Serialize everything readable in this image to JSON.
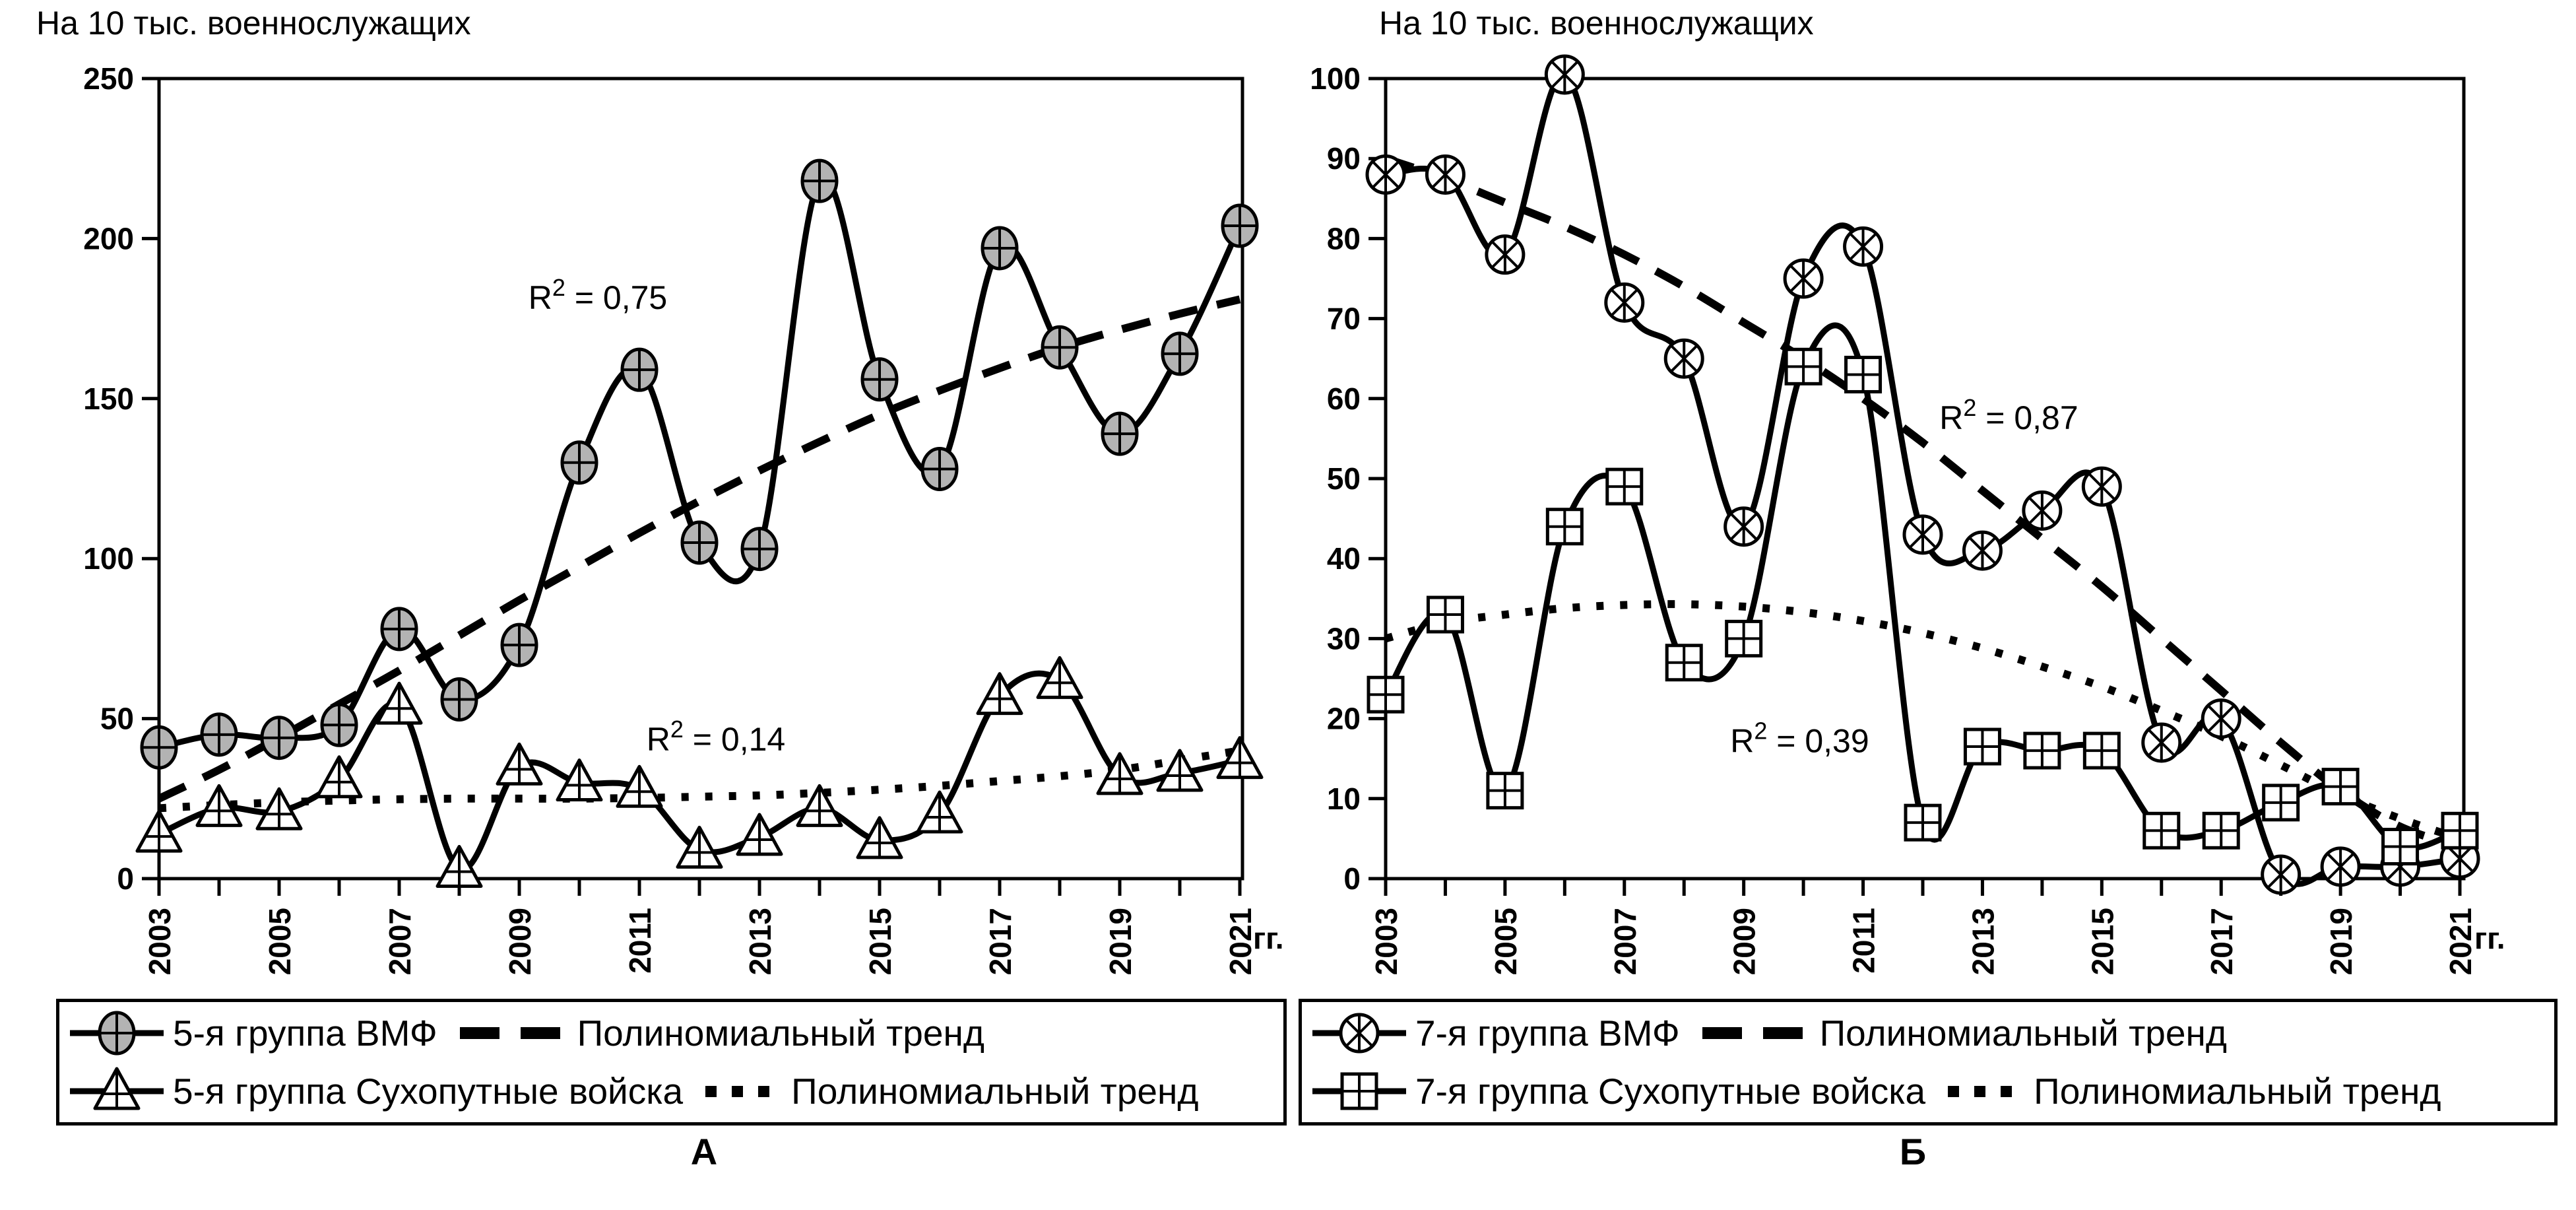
{
  "chart_data": [
    {
      "type": "line",
      "panel_label": "А",
      "title": "На 10 тыс.  военнослужащих",
      "x_unit": "гг.",
      "categories": [
        2003,
        2004,
        2005,
        2006,
        2007,
        2008,
        2009,
        2010,
        2011,
        2012,
        2013,
        2014,
        2015,
        2016,
        2017,
        2018,
        2019,
        2020,
        2021
      ],
      "x_tick_labels": [
        "2003",
        "2005",
        "2007",
        "2009",
        "2011",
        "2013",
        "2015",
        "2017",
        "2019",
        "2021"
      ],
      "y_tick_labels": [
        "250",
        "200",
        "150",
        "100",
        "50",
        "0"
      ],
      "ylim": [
        0,
        250
      ],
      "ystep": 50,
      "grid": false,
      "legend_position": "bottom",
      "line_color": "#000000",
      "series": [
        {
          "name": "5-я группа ВМФ",
          "marker": "ellipse-cross",
          "marker_fill": "#b3b3b3",
          "values": [
            41,
            45,
            44,
            48,
            78,
            56,
            73,
            130,
            159,
            105,
            103,
            218,
            156,
            128,
            197,
            166,
            139,
            164,
            204
          ]
        },
        {
          "name": "5-я группа Сухопутные войска",
          "marker": "triangle-cross",
          "marker_fill": "#ffffff",
          "values": [
            14,
            22,
            21,
            31,
            54,
            3,
            35,
            30,
            28,
            9,
            13,
            22,
            12,
            20,
            57,
            62,
            32,
            33,
            37
          ]
        }
      ],
      "trends": [
        {
          "name": "Полиномиальный тренд",
          "style": "dash",
          "r2": "R² = 0,75",
          "values": [
            25,
            34,
            44,
            54.5,
            65,
            76,
            87,
            97.5,
            108,
            118,
            127.5,
            136.5,
            145,
            152.5,
            159.5,
            166,
            171.5,
            176.5,
            181
          ]
        },
        {
          "name": "Полиномиальный тренд",
          "style": "dot",
          "r2": "R² = 0,14",
          "values": [
            22,
            23,
            23.8,
            24.4,
            24.8,
            25,
            25,
            25,
            25.2,
            25.6,
            26,
            26.8,
            27.8,
            29,
            30.5,
            32,
            34,
            37,
            40
          ]
        }
      ],
      "annotations": [
        {
          "text": "R² = 0,75",
          "xf": 0.405,
          "yf": 0.274
        },
        {
          "text": "R² = 0,14",
          "xf": 0.514,
          "yf": 0.826
        }
      ]
    },
    {
      "type": "line",
      "panel_label": "Б",
      "title": "На 10 тыс.  военнослужащих",
      "x_unit": "гг.",
      "categories": [
        2003,
        2004,
        2005,
        2006,
        2007,
        2008,
        2009,
        2010,
        2011,
        2012,
        2013,
        2014,
        2015,
        2016,
        2017,
        2018,
        2019,
        2020,
        2021
      ],
      "x_tick_labels": [
        "2003",
        "2005",
        "2007",
        "2009",
        "2011",
        "2013",
        "2015",
        "2017",
        "2019",
        "2021"
      ],
      "y_tick_labels": [
        "100",
        "90",
        "80",
        "70",
        "60",
        "50",
        "40",
        "30",
        "20",
        "10",
        "0"
      ],
      "ylim": [
        0,
        100
      ],
      "ystep": 10,
      "grid": false,
      "legend_position": "bottom",
      "line_color": "#000000",
      "series": [
        {
          "name": "7-я группа ВМФ",
          "marker": "circle-star",
          "marker_fill": "#ffffff",
          "values": [
            88,
            88,
            78,
            100.5,
            72,
            65,
            44,
            75,
            79,
            43,
            41,
            46,
            49,
            17,
            20,
            0.5,
            1.5,
            1.5,
            2.5
          ]
        },
        {
          "name": "7-я группа Сухопутные войска",
          "marker": "square-cross",
          "marker_fill": "#ffffff",
          "values": [
            23,
            33,
            11,
            44,
            49,
            27,
            30,
            64,
            63,
            7,
            16.5,
            16,
            16,
            6,
            6,
            9.5,
            11.5,
            4,
            6
          ]
        }
      ],
      "trends": [
        {
          "name": "Полиномиальный тренд",
          "style": "dash",
          "r2": "R² = 0,87",
          "values": [
            90,
            87.5,
            84.5,
            81.5,
            78,
            74,
            69.5,
            65,
            60,
            54.5,
            48.5,
            42.5,
            36.5,
            30,
            23.5,
            17,
            11,
            6.5,
            4
          ]
        },
        {
          "name": "Полиномиальный тренд",
          "style": "dot",
          "r2": "R² = 0,39",
          "values": [
            30,
            32,
            33,
            33.8,
            34.2,
            34.3,
            34,
            33.3,
            32.2,
            30.7,
            28.8,
            26.5,
            24,
            21,
            17.8,
            14.2,
            10.5,
            7.5,
            5
          ]
        }
      ],
      "annotations": [
        {
          "text": "R² = 0,87",
          "xf": 0.578,
          "yf": 0.424
        },
        {
          "text": "R² = 0,39",
          "xf": 0.384,
          "yf": 0.828
        }
      ]
    }
  ]
}
